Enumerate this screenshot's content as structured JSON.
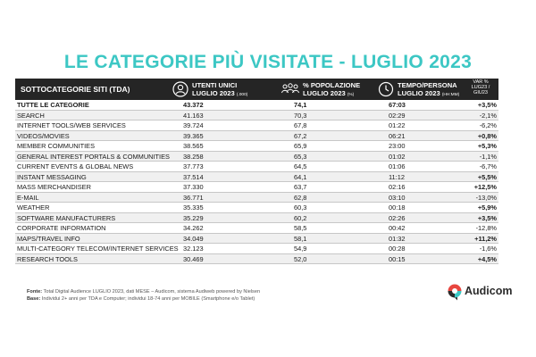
{
  "title": "LE CATEGORIE PIÙ VISITATE - LUGLIO  2023",
  "header": {
    "category": "SOTTOCATEGORIE SITI  (TDA)",
    "users_line1": "UTENTI UNICI",
    "users_line2": "LUGLIO 2023",
    "users_unit": "(.000)",
    "pct_line1": "% POPOLAZIONE",
    "pct_line2": "LUGLIO 2023",
    "pct_unit": "(%)",
    "time_line1": "TEMPO/PERSONA",
    "time_line2": "LUGLIO 2023",
    "time_unit": "(HH:MM)",
    "var_line1": "VAR %",
    "var_line2": "LUG23 /",
    "var_line3": "GIU23"
  },
  "rows": [
    {
      "category": "TUTTE LE CATEGORIE",
      "users": "43.372",
      "pct": "74,1",
      "time": "67:03",
      "var": "+3,5%"
    },
    {
      "category": "SEARCH",
      "users": "41.163",
      "pct": "70,3",
      "time": "02:29",
      "var": "-2,1%"
    },
    {
      "category": "INTERNET TOOLS/WEB SERVICES",
      "users": "39.724",
      "pct": "67,8",
      "time": "01:22",
      "var": "-6,2%"
    },
    {
      "category": "VIDEOS/MOVIES",
      "users": "39.365",
      "pct": "67,2",
      "time": "06:21",
      "var": "+0,8%"
    },
    {
      "category": "MEMBER COMMUNITIES",
      "users": "38.565",
      "pct": "65,9",
      "time": "23:00",
      "var": "+5,3%"
    },
    {
      "category": "GENERAL INTEREST PORTALS & COMMUNITIES",
      "users": "38.258",
      "pct": "65,3",
      "time": "01:02",
      "var": "-1,1%"
    },
    {
      "category": "CURRENT EVENTS & GLOBAL NEWS",
      "users": "37.773",
      "pct": "64,5",
      "time": "01:06",
      "var": "-6,7%"
    },
    {
      "category": "INSTANT MESSAGING",
      "users": "37.514",
      "pct": "64,1",
      "time": "11:12",
      "var": "+5,5%"
    },
    {
      "category": "MASS MERCHANDISER",
      "users": "37.330",
      "pct": "63,7",
      "time": "02:16",
      "var": "+12,5%"
    },
    {
      "category": "E-MAIL",
      "users": "36.771",
      "pct": "62,8",
      "time": "03:10",
      "var": "-13,0%"
    },
    {
      "category": "WEATHER",
      "users": "35.335",
      "pct": "60,3",
      "time": "00:18",
      "var": "+5,9%"
    },
    {
      "category": "SOFTWARE MANUFACTURERS",
      "users": "35.229",
      "pct": "60,2",
      "time": "02:26",
      "var": "+3,5%"
    },
    {
      "category": "CORPORATE INFORMATION",
      "users": "34.262",
      "pct": "58,5",
      "time": "00:42",
      "var": "-12,8%"
    },
    {
      "category": "MAPS/TRAVEL INFO",
      "users": "34.049",
      "pct": "58,1",
      "time": "01:32",
      "var": "+11,2%"
    },
    {
      "category": "MULTI-CATEGORY TELECOM/INTERNET SERVICES",
      "users": "32.123",
      "pct": "54,9",
      "time": "00:28",
      "var": "-1,6%"
    },
    {
      "category": "RESEARCH TOOLS",
      "users": "30.469",
      "pct": "52,0",
      "time": "00:15",
      "var": "+4,5%"
    }
  ],
  "footer": {
    "source_label": "Fonte:",
    "source_text": "Total Digital Audience LUGLIO 2023, dati MESE – Audicom, sistema Audiweb powered by Nielsen",
    "base_label": "Base:",
    "base_text": "Individui 2+ anni per TDA e Computer; individui 18-74 anni per MOBILE (Smartphone e/o Tablet)"
  },
  "brand": {
    "name": "Audicom",
    "colors": {
      "red": "#e8463f",
      "teal": "#3cc7c4",
      "dark": "#2b2b2b"
    }
  },
  "colors": {
    "title": "#3cc7c4",
    "header_bg": "#252525"
  }
}
